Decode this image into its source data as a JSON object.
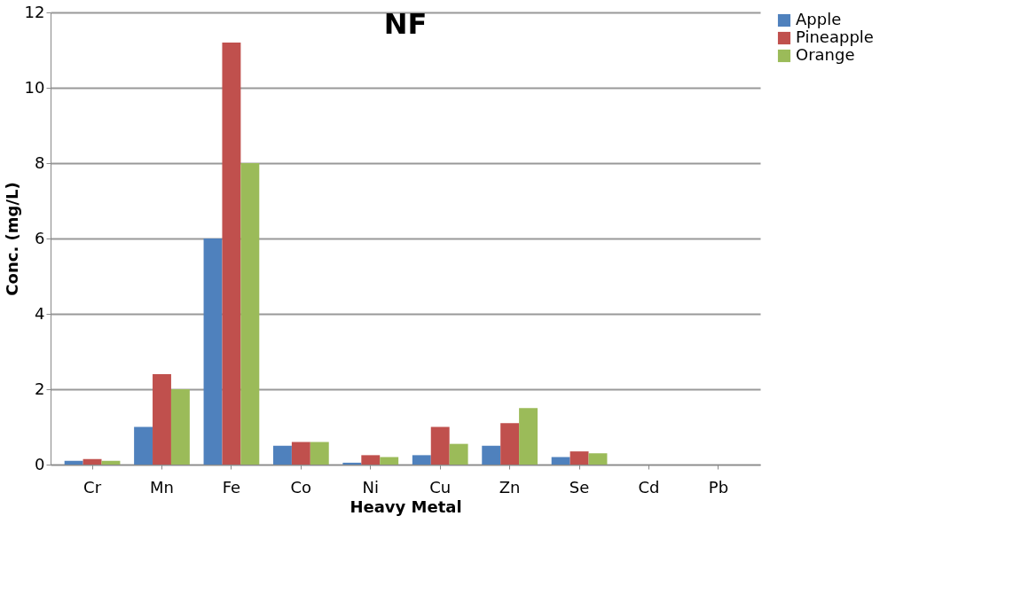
{
  "chart_data": {
    "type": "bar",
    "title": "NF",
    "xlabel": "Heavy Metal",
    "ylabel": "Conc. (mg/L)",
    "categories": [
      "Cr",
      "Mn",
      "Fe",
      "Co",
      "Ni",
      "Cu",
      "Zn",
      "Se",
      "Cd",
      "Pb"
    ],
    "series": [
      {
        "name": "Apple",
        "color": "#4f81bd",
        "values": [
          0.1,
          1.0,
          6.0,
          0.5,
          0.05,
          0.25,
          0.5,
          0.2,
          0,
          0
        ]
      },
      {
        "name": "Pineapple",
        "color": "#c0504d",
        "values": [
          0.15,
          2.4,
          11.2,
          0.6,
          0.25,
          1.0,
          1.1,
          0.35,
          0,
          0
        ]
      },
      {
        "name": "Orange",
        "color": "#9bbb59",
        "values": [
          0.1,
          2.0,
          8.0,
          0.6,
          0.2,
          0.55,
          1.5,
          0.3,
          0,
          0
        ]
      }
    ],
    "ylim": [
      0,
      12
    ],
    "yticks": [
      0,
      2,
      4,
      6,
      8,
      10,
      12
    ],
    "grid": "y",
    "legend": "right"
  }
}
